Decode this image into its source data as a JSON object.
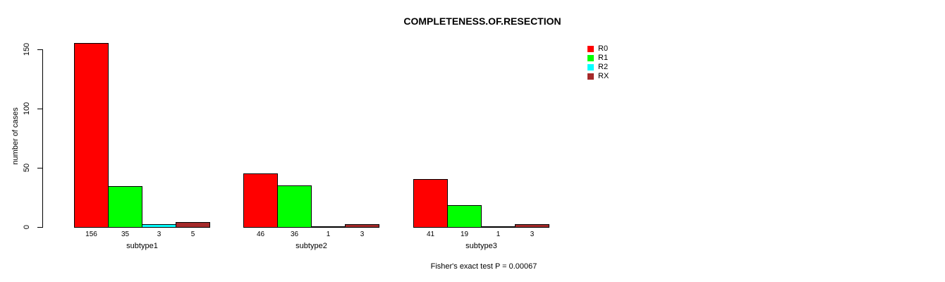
{
  "chart_data": {
    "type": "bar",
    "title": "COMPLETENESS.OF.RESECTION",
    "ylabel": "number of cases",
    "xlabel": "",
    "categories": [
      "subtype1",
      "subtype2",
      "subtype3"
    ],
    "series": [
      {
        "name": "R0",
        "color": "#FF0000",
        "values": [
          156,
          46,
          41
        ]
      },
      {
        "name": "R1",
        "color": "#00FF00",
        "values": [
          35,
          36,
          19
        ]
      },
      {
        "name": "R2",
        "color": "#00FFFF",
        "values": [
          3,
          1,
          1
        ]
      },
      {
        "name": "RX",
        "color": "#A52A2A",
        "values": [
          5,
          3,
          3
        ]
      }
    ],
    "yticks": [
      0,
      50,
      100,
      150
    ],
    "ylim": [
      0,
      150
    ],
    "grid": false,
    "legend_position": "top-right",
    "bar_border_color": "#000000",
    "value_labels_shown": true,
    "annotation": "Fisher's exact test P = 0.00067"
  }
}
